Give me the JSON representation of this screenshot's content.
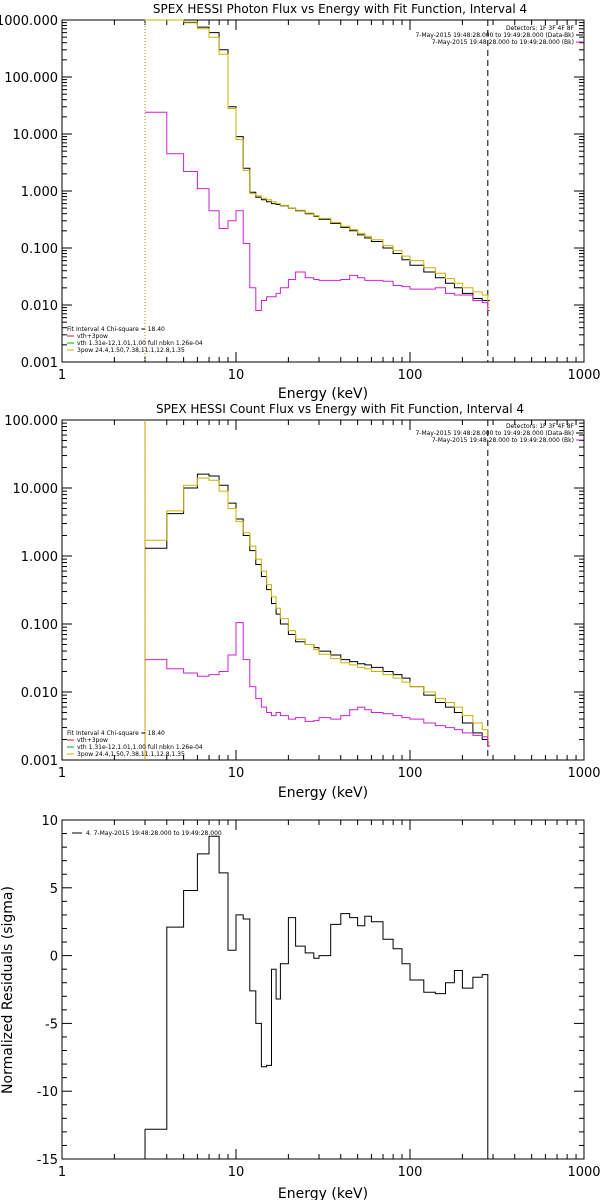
{
  "panels": [
    {
      "id": "photon",
      "chart_data": {
        "type": "line",
        "title": "SPEX HESSI Photon Flux vs Energy with Fit Function, Interval 4",
        "xlabel": "Energy (keV)",
        "ylabel": "",
        "xscale": "log",
        "yscale": "log",
        "xlim": [
          1,
          1000
        ],
        "ylim": [
          0.001,
          1000
        ],
        "x_ticks": [
          1,
          10,
          100,
          1000
        ],
        "x_tick_labels": [
          "1",
          "10",
          "100",
          "1000"
        ],
        "y_ticks": [
          0.001,
          0.01,
          0.1,
          1,
          10,
          100,
          1000
        ],
        "y_tick_labels": [
          "0.001",
          "0.010",
          "0.100",
          "1.000",
          "10.000",
          "100.000",
          "1000.000"
        ],
        "info_lines": [
          "Detectors: 1F 3F 4F 8F",
          "7-May-2015 19:48:28.000 to 19:49:28.000 (Data-Bk)",
          "7-May-2015 19:48:28.000 to 19:49:28.000 (Bk)"
        ],
        "fit_lines": [
          "Fit Interval 4   Chi-square = 18.40",
          "vth+3pow",
          "vth 1.31e-12,1.01,1.00  full nbkn 1.26e-04",
          "3pow 24.4,1.50,7.38,11.1,12.8,1.35"
        ],
        "vlines": [
          {
            "x": 3,
            "style": "dotted",
            "color": "#b8860b"
          },
          {
            "x": 280,
            "style": "dashed",
            "color": "#000000"
          }
        ],
        "series": [
          {
            "color": "#000000",
            "x": [
              3,
              4,
              5,
              6,
              7,
              8,
              9,
              10,
              11,
              12,
              13,
              14,
              15,
              16,
              17,
              18,
              20,
              22,
              25,
              28,
              30,
              35,
              40,
              45,
              50,
              55,
              60,
              70,
              80,
              90,
              100,
              120,
              140,
              160,
              180,
              200,
              230,
              260,
              280
            ],
            "y": [
              1000,
              1000,
              900,
              750,
              600,
              300,
              30,
              9,
              2.5,
              0.95,
              0.78,
              0.7,
              0.65,
              0.6,
              0.58,
              0.55,
              0.5,
              0.45,
              0.4,
              0.36,
              0.32,
              0.27,
              0.23,
              0.2,
              0.17,
              0.15,
              0.13,
              0.1,
              0.08,
              0.062,
              0.05,
              0.038,
              0.03,
              0.024,
              0.02,
              0.016,
              0.013,
              0.012,
              0.012
            ]
          },
          {
            "color": "#c8b400",
            "x": [
              3,
              4,
              5,
              6,
              7,
              8,
              9,
              10,
              11,
              12,
              13,
              14,
              15,
              16,
              17,
              18,
              20,
              22,
              25,
              28,
              30,
              35,
              40,
              45,
              50,
              55,
              60,
              70,
              80,
              90,
              100,
              120,
              140,
              160,
              180,
              200,
              230,
              260,
              280
            ],
            "y": [
              1000,
              1000,
              920,
              700,
              500,
              250,
              28,
              8,
              2.3,
              0.9,
              0.82,
              0.75,
              0.7,
              0.65,
              0.6,
              0.56,
              0.5,
              0.46,
              0.41,
              0.37,
              0.33,
              0.28,
              0.24,
              0.21,
              0.18,
              0.16,
              0.14,
              0.11,
              0.09,
              0.072,
              0.06,
              0.045,
              0.036,
              0.029,
              0.024,
              0.02,
              0.017,
              0.015,
              0.009
            ]
          },
          {
            "color": "#d020d0",
            "x": [
              3,
              4,
              5,
              6,
              7,
              8,
              9,
              10,
              11,
              12,
              13,
              14,
              15,
              16,
              17,
              18,
              20,
              22,
              25,
              28,
              30,
              35,
              40,
              45,
              50,
              55,
              60,
              70,
              80,
              90,
              100,
              120,
              140,
              160,
              180,
              200,
              230,
              260,
              280
            ],
            "y": [
              24,
              4.5,
              2.2,
              1.1,
              0.45,
              0.22,
              0.3,
              0.45,
              0.12,
              0.02,
              0.008,
              0.012,
              0.014,
              0.014,
              0.016,
              0.02,
              0.028,
              0.038,
              0.03,
              0.028,
              0.027,
              0.027,
              0.028,
              0.033,
              0.03,
              0.027,
              0.027,
              0.026,
              0.022,
              0.021,
              0.019,
              0.019,
              0.02,
              0.016,
              0.015,
              0.015,
              0.012,
              0.011,
              0.008
            ]
          }
        ]
      }
    },
    {
      "id": "count",
      "chart_data": {
        "type": "line",
        "title": "SPEX HESSI Count Flux vs Energy with Fit Function, Interval 4",
        "xlabel": "Energy (keV)",
        "ylabel": "",
        "xscale": "log",
        "yscale": "log",
        "xlim": [
          1,
          1000
        ],
        "ylim": [
          0.001,
          100
        ],
        "x_ticks": [
          1,
          10,
          100,
          1000
        ],
        "x_tick_labels": [
          "1",
          "10",
          "100",
          "1000"
        ],
        "y_ticks": [
          0.001,
          0.01,
          0.1,
          1,
          10,
          100
        ],
        "y_tick_labels": [
          "0.001",
          "0.010",
          "0.100",
          "1.000",
          "10.000",
          "100.000"
        ],
        "info_lines": [
          "Detectors: 1F 3F 4F 8F",
          "7-May-2015 19:48:28.000 to 19:49:28.000 (Data-Bk)",
          "7-May-2015 19:48:28.000 to 19:49:28.000 (Bk)"
        ],
        "fit_lines": [
          "Fit Interval 4   Chi-square = 18.40",
          "vth+3pow",
          "vth 1.31e-12,1.01,1.00  full nbkn 1.26e-04",
          "3pow 24.4,1.50,7.38,11.1,12.8,1.35"
        ],
        "vlines": [
          {
            "x": 3,
            "style": "dotted",
            "color": "#000000"
          },
          {
            "x": 3,
            "style": "solid",
            "color": "#e0a000"
          },
          {
            "x": 280,
            "style": "dashed",
            "color": "#000000"
          }
        ],
        "series": [
          {
            "color": "#000000",
            "x": [
              3,
              4,
              5,
              6,
              7,
              8,
              9,
              10,
              11,
              12,
              13,
              14,
              15,
              16,
              17,
              18,
              20,
              22,
              25,
              28,
              30,
              35,
              40,
              45,
              50,
              55,
              60,
              70,
              80,
              90,
              100,
              120,
              140,
              160,
              180,
              200,
              230,
              260,
              280
            ],
            "y": [
              1.3,
              4.2,
              10,
              16,
              15,
              11,
              6,
              3.5,
              2,
              1.2,
              0.75,
              0.5,
              0.32,
              0.2,
              0.14,
              0.1,
              0.07,
              0.055,
              0.05,
              0.045,
              0.04,
              0.035,
              0.03,
              0.028,
              0.026,
              0.025,
              0.023,
              0.02,
              0.018,
              0.016,
              0.012,
              0.009,
              0.007,
              0.006,
              0.005,
              0.0035,
              0.0025,
              0.002,
              0.0016
            ]
          },
          {
            "color": "#c8b400",
            "x": [
              3,
              4,
              5,
              6,
              7,
              8,
              9,
              10,
              11,
              12,
              13,
              14,
              15,
              16,
              17,
              18,
              20,
              22,
              25,
              28,
              30,
              35,
              40,
              45,
              50,
              55,
              60,
              70,
              80,
              90,
              100,
              120,
              140,
              160,
              180,
              200,
              230,
              260,
              280
            ],
            "y": [
              1.7,
              4.6,
              11,
              14,
              13,
              9,
              5,
              3.2,
              2.2,
              1.4,
              0.9,
              0.6,
              0.38,
              0.25,
              0.17,
              0.12,
              0.08,
              0.06,
              0.05,
              0.042,
              0.036,
              0.031,
              0.027,
              0.025,
              0.023,
              0.022,
              0.02,
              0.018,
              0.016,
              0.014,
              0.012,
              0.01,
              0.008,
              0.007,
              0.006,
              0.0045,
              0.0035,
              0.0028,
              0.0018
            ]
          },
          {
            "color": "#d020d0",
            "x": [
              3,
              4,
              5,
              6,
              7,
              8,
              9,
              10,
              11,
              12,
              13,
              14,
              15,
              16,
              17,
              18,
              20,
              22,
              25,
              28,
              30,
              35,
              40,
              45,
              50,
              55,
              60,
              70,
              80,
              90,
              100,
              120,
              140,
              160,
              180,
              200,
              230,
              260,
              280
            ],
            "y": [
              0.03,
              0.022,
              0.019,
              0.017,
              0.018,
              0.02,
              0.035,
              0.105,
              0.03,
              0.012,
              0.008,
              0.006,
              0.005,
              0.0045,
              0.005,
              0.0045,
              0.004,
              0.0042,
              0.0037,
              0.0038,
              0.0042,
              0.004,
              0.0045,
              0.0055,
              0.006,
              0.0055,
              0.005,
              0.0048,
              0.0045,
              0.0042,
              0.004,
              0.0035,
              0.0032,
              0.003,
              0.0028,
              0.0025,
              0.0023,
              0.0022,
              0.0016
            ]
          }
        ]
      }
    },
    {
      "id": "residuals",
      "chart_data": {
        "type": "line",
        "title": "",
        "xlabel": "Energy (keV)",
        "ylabel": "Normalized Residuals (sigma)",
        "xscale": "log",
        "yscale": "linear",
        "xlim": [
          1,
          1000
        ],
        "ylim": [
          -15,
          10
        ],
        "x_ticks": [
          1,
          10,
          100,
          1000
        ],
        "x_tick_labels": [
          "1",
          "10",
          "100",
          "1000"
        ],
        "y_ticks": [
          -15,
          -10,
          -5,
          0,
          5,
          10
        ],
        "y_tick_labels": [
          "-15",
          "-10",
          "-5",
          "0",
          "5",
          "10"
        ],
        "legend_line": "4. 7-May-2015 19:48:28.000 to 19:49:28.000",
        "series": [
          {
            "color": "#000000",
            "x": [
              3,
              4,
              5,
              6,
              7,
              8,
              9,
              10,
              11,
              12,
              13,
              14,
              15,
              16,
              17,
              18,
              20,
              22,
              25,
              28,
              30,
              35,
              40,
              45,
              50,
              55,
              60,
              70,
              80,
              90,
              100,
              120,
              140,
              160,
              180,
              200,
              230,
              260,
              280
            ],
            "y": [
              -12.8,
              2.1,
              4.8,
              7.5,
              8.8,
              6.1,
              0.4,
              3.0,
              2.7,
              -2.6,
              -5.0,
              -8.2,
              -8.1,
              -1.0,
              -3.2,
              -0.6,
              2.8,
              0.7,
              0.2,
              -0.2,
              0.0,
              2.3,
              3.1,
              2.8,
              2.2,
              2.9,
              2.5,
              1.2,
              0.5,
              -0.6,
              -1.8,
              -2.7,
              -2.8,
              -2.0,
              -1.1,
              -2.4,
              -1.6,
              -1.4,
              -15
            ]
          }
        ]
      }
    }
  ]
}
